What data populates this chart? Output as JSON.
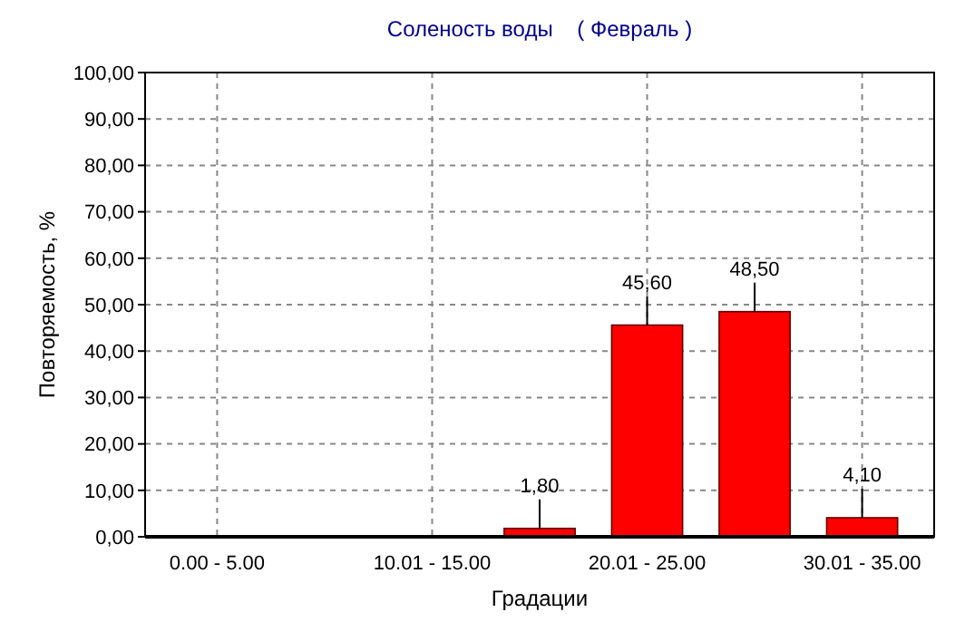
{
  "chart_data": {
    "type": "bar",
    "title": "Соленость воды    ( Февраль )",
    "xlabel": "Градации",
    "ylabel": "Повторяемость, %",
    "categories": [
      "0.00 - 5.00",
      null,
      "10.01 - 15.00",
      null,
      "20.01 - 25.00",
      null,
      "30.01 - 35.00"
    ],
    "values": [
      0,
      0,
      0,
      1.8,
      45.6,
      48.5,
      4.1
    ],
    "value_labels": [
      null,
      null,
      null,
      "1,80",
      "45,60",
      "48,50",
      "4,10"
    ],
    "color": "#ff0000",
    "ylim": [
      0,
      100
    ],
    "yticks": [
      {
        "value": 0,
        "label": "0,00"
      },
      {
        "value": 10,
        "label": "10,00"
      },
      {
        "value": 20,
        "label": "20,00"
      },
      {
        "value": 30,
        "label": "30,00"
      },
      {
        "value": 40,
        "label": "40,00"
      },
      {
        "value": 50,
        "label": "50,00"
      },
      {
        "value": 60,
        "label": "60,00"
      },
      {
        "value": 70,
        "label": "70,00"
      },
      {
        "value": 80,
        "label": "80,00"
      },
      {
        "value": 90,
        "label": "90,00"
      },
      {
        "value": 100,
        "label": "100,00"
      }
    ],
    "grid": true
  }
}
